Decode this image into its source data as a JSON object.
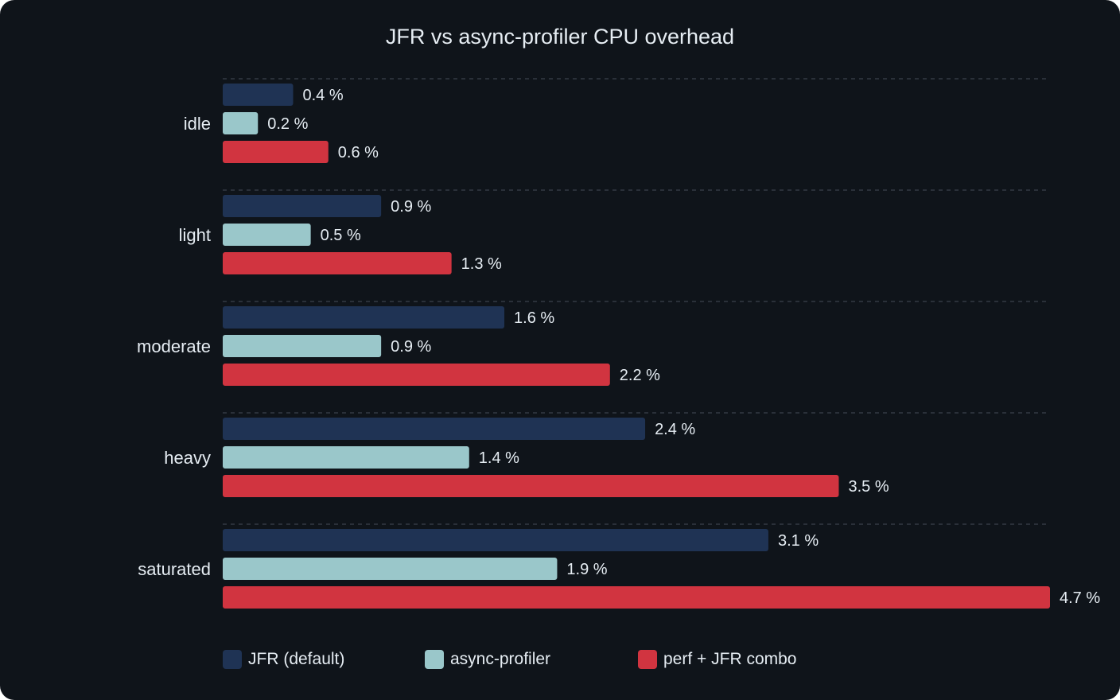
{
  "chart_data": {
    "type": "bar",
    "orientation": "horizontal",
    "title": "JFR vs async-profiler CPU overhead",
    "categories": [
      "idle",
      "light",
      "moderate",
      "heavy",
      "saturated"
    ],
    "series": [
      {
        "name": "JFR (default)",
        "values": [
          0.4,
          0.9,
          1.6,
          2.4,
          3.1
        ],
        "color": "#1f3354"
      },
      {
        "name": "async-profiler",
        "values": [
          0.2,
          0.5,
          0.9,
          1.4,
          1.9
        ],
        "color": "#9ac7ca"
      },
      {
        "name": "perf + JFR combo",
        "values": [
          0.6,
          1.3,
          2.2,
          3.5,
          4.7
        ],
        "color": "#d13440"
      }
    ],
    "value_suffix": " %",
    "xlim": [
      0,
      4.7
    ],
    "grid": "dashed separators between categories",
    "legend_position": "bottom-left"
  }
}
